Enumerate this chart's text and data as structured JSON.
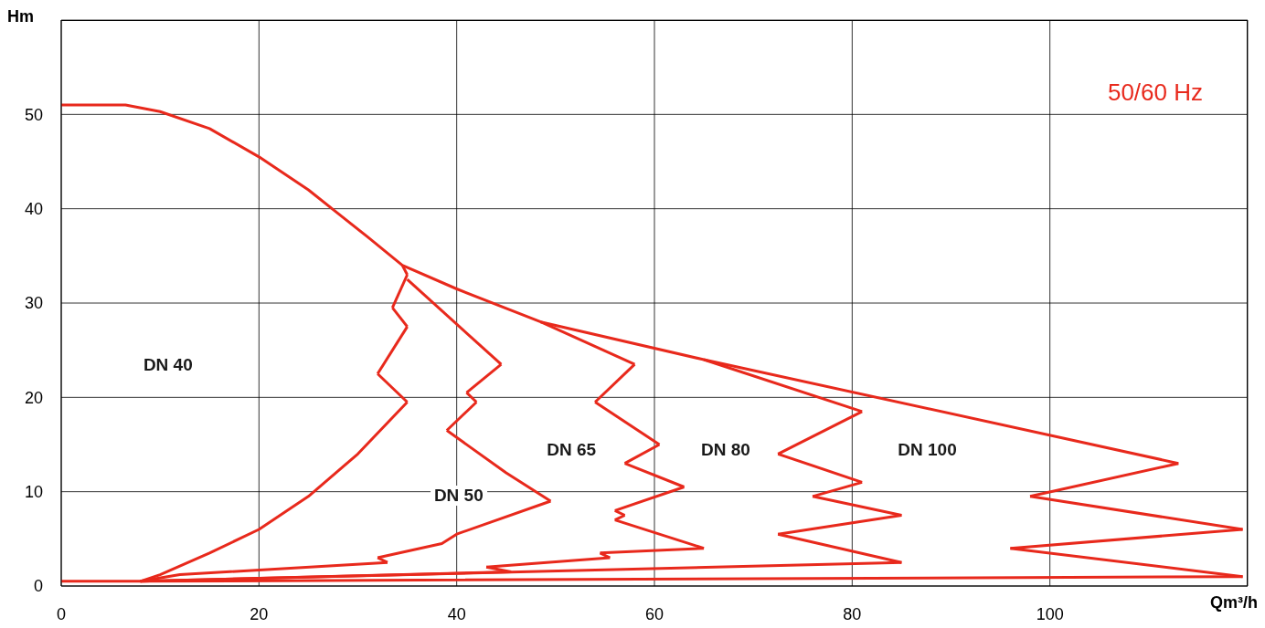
{
  "chart_data": {
    "type": "line",
    "title": "50/60 Hz",
    "xlabel": "Qm³/h",
    "ylabel": "Hm",
    "xlim": [
      0,
      120
    ],
    "ylim": [
      0,
      60
    ],
    "xticks": [
      0,
      20,
      40,
      60,
      80,
      100
    ],
    "yticks": [
      0,
      10,
      20,
      30,
      40,
      50
    ],
    "grid": true,
    "marker": "none",
    "line_style": "solid",
    "series": [
      {
        "color": "#e8291c",
        "x": [
          0,
          6.5,
          10,
          15,
          20,
          25,
          28,
          31,
          34.5,
          40,
          48.5,
          65,
          113
        ],
        "values": [
          51,
          51,
          50.3,
          48.5,
          45.5,
          42,
          39.5,
          37,
          34,
          31.5,
          28,
          24,
          13
        ]
      },
      {
        "color": "#e8291c",
        "x": [
          113,
          98
        ],
        "values": [
          13,
          9.5
        ]
      },
      {
        "color": "#e8291c",
        "x": [
          98,
          119.5
        ],
        "values": [
          9.5,
          6
        ]
      },
      {
        "color": "#e8291c",
        "x": [
          119.5,
          96
        ],
        "values": [
          6,
          4
        ]
      },
      {
        "color": "#e8291c",
        "x": [
          96,
          119.5
        ],
        "values": [
          4,
          1
        ]
      },
      {
        "color": "#e8291c",
        "x": [
          119.5,
          8,
          0
        ],
        "values": [
          1,
          0.5,
          0.5
        ]
      },
      {
        "color": "#e8291c",
        "x": [
          34.5,
          35
        ],
        "values": [
          34,
          33
        ]
      },
      {
        "color": "#e8291c",
        "x": [
          35,
          33.5
        ],
        "values": [
          33,
          29.5
        ]
      },
      {
        "color": "#e8291c",
        "x": [
          33.5,
          35
        ],
        "values": [
          29.5,
          27.5
        ]
      },
      {
        "color": "#e8291c",
        "x": [
          35,
          32
        ],
        "values": [
          27.5,
          22.5
        ]
      },
      {
        "color": "#e8291c",
        "x": [
          32,
          35
        ],
        "values": [
          22.5,
          19.5
        ]
      },
      {
        "color": "#e8291c",
        "x": [
          35,
          30,
          25,
          20,
          15,
          10,
          8
        ],
        "values": [
          19.5,
          14,
          9.5,
          6,
          3.5,
          1.2,
          0.5
        ]
      },
      {
        "color": "#e8291c",
        "x": [
          35,
          44.5
        ],
        "values": [
          32.5,
          23.5
        ]
      },
      {
        "color": "#e8291c",
        "x": [
          44.5,
          41
        ],
        "values": [
          23.5,
          20.5
        ]
      },
      {
        "color": "#e8291c",
        "x": [
          41,
          42
        ],
        "values": [
          20.5,
          19.5
        ]
      },
      {
        "color": "#e8291c",
        "x": [
          42,
          39
        ],
        "values": [
          19.5,
          16.5
        ]
      },
      {
        "color": "#e8291c",
        "x": [
          39,
          45,
          49.5
        ],
        "values": [
          16.5,
          12,
          9
        ]
      },
      {
        "color": "#e8291c",
        "x": [
          49.5,
          40,
          38.5,
          32
        ],
        "values": [
          9,
          5.5,
          4.5,
          3
        ]
      },
      {
        "color": "#e8291c",
        "x": [
          32,
          33
        ],
        "values": [
          3,
          2.5
        ]
      },
      {
        "color": "#e8291c",
        "x": [
          33,
          12,
          8
        ],
        "values": [
          2.5,
          1.2,
          0.5
        ]
      },
      {
        "color": "#e8291c",
        "x": [
          48.5,
          58
        ],
        "values": [
          28,
          23.5
        ]
      },
      {
        "color": "#e8291c",
        "x": [
          58,
          54
        ],
        "values": [
          23.5,
          19.5
        ]
      },
      {
        "color": "#e8291c",
        "x": [
          54,
          60.5
        ],
        "values": [
          19.5,
          15
        ]
      },
      {
        "color": "#e8291c",
        "x": [
          60.5,
          57
        ],
        "values": [
          15,
          13
        ]
      },
      {
        "color": "#e8291c",
        "x": [
          57,
          63
        ],
        "values": [
          13,
          10.5
        ]
      },
      {
        "color": "#e8291c",
        "x": [
          63,
          56
        ],
        "values": [
          10.5,
          8
        ]
      },
      {
        "color": "#e8291c",
        "x": [
          56,
          57
        ],
        "values": [
          8,
          7.5
        ]
      },
      {
        "color": "#e8291c",
        "x": [
          57,
          56
        ],
        "values": [
          7.5,
          7
        ]
      },
      {
        "color": "#e8291c",
        "x": [
          56,
          65
        ],
        "values": [
          7,
          4
        ]
      },
      {
        "color": "#e8291c",
        "x": [
          65,
          54.5
        ],
        "values": [
          4,
          3.5
        ]
      },
      {
        "color": "#e8291c",
        "x": [
          54.5,
          55.5
        ],
        "values": [
          3.5,
          3
        ]
      },
      {
        "color": "#e8291c",
        "x": [
          55.5,
          43
        ],
        "values": [
          3,
          2
        ]
      },
      {
        "color": "#e8291c",
        "x": [
          43,
          45.5
        ],
        "values": [
          2,
          1.5
        ]
      },
      {
        "color": "#e8291c",
        "x": [
          45.5,
          8
        ],
        "values": [
          1.5,
          0.5
        ]
      },
      {
        "color": "#e8291c",
        "x": [
          65,
          81
        ],
        "values": [
          24,
          18.5
        ]
      },
      {
        "color": "#e8291c",
        "x": [
          81,
          72.5
        ],
        "values": [
          18.5,
          14
        ]
      },
      {
        "color": "#e8291c",
        "x": [
          72.5,
          81
        ],
        "values": [
          14,
          11
        ]
      },
      {
        "color": "#e8291c",
        "x": [
          81,
          76
        ],
        "values": [
          11,
          9.5
        ]
      },
      {
        "color": "#e8291c",
        "x": [
          76,
          85
        ],
        "values": [
          9.5,
          7.5
        ]
      },
      {
        "color": "#e8291c",
        "x": [
          85,
          72.5
        ],
        "values": [
          7.5,
          5.5
        ]
      },
      {
        "color": "#e8291c",
        "x": [
          72.5,
          85
        ],
        "values": [
          5.5,
          2.5
        ]
      },
      {
        "color": "#e8291c",
        "x": [
          85,
          8
        ],
        "values": [
          2.5,
          0.5
        ]
      }
    ],
    "annotations": [
      "DN 40",
      "DN 50",
      "DN 65",
      "DN 80",
      "DN 100"
    ]
  }
}
